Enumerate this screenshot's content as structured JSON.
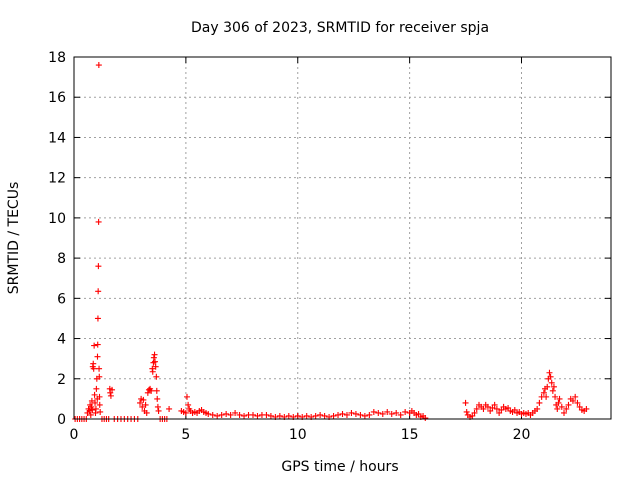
{
  "chart_data": {
    "type": "scatter",
    "title": "Day 306 of 2023, SRMTID for receiver spja",
    "xlabel": "GPS time / hours",
    "ylabel": "SRMTID / TECUs",
    "xlim": [
      0,
      24
    ],
    "ylim": [
      0,
      18
    ],
    "xticks": [
      0,
      5,
      10,
      15,
      20
    ],
    "yticks": [
      0,
      2,
      4,
      6,
      8,
      10,
      12,
      14,
      16,
      18
    ],
    "grid": true,
    "marker": "+",
    "color": "#ff0000",
    "series": [
      {
        "name": "SRMTID",
        "points": [
          [
            0.05,
            0.0
          ],
          [
            0.15,
            0.0
          ],
          [
            0.25,
            0.0
          ],
          [
            0.35,
            0.0
          ],
          [
            0.45,
            0.0
          ],
          [
            0.55,
            0.0
          ],
          [
            0.6,
            0.3
          ],
          [
            0.65,
            0.5
          ],
          [
            0.7,
            0.4
          ],
          [
            0.72,
            0.7
          ],
          [
            0.75,
            0.2
          ],
          [
            0.78,
            0.6
          ],
          [
            0.8,
            0.9
          ],
          [
            0.82,
            0.45
          ],
          [
            0.84,
            2.6
          ],
          [
            0.86,
            2.75
          ],
          [
            0.88,
            2.5
          ],
          [
            0.9,
            3.65
          ],
          [
            0.92,
            1.2
          ],
          [
            0.94,
            0.8
          ],
          [
            0.96,
            0.3
          ],
          [
            0.98,
            0.5
          ],
          [
            1.0,
            1.5
          ],
          [
            1.02,
            2.0
          ],
          [
            1.04,
            1.0
          ],
          [
            1.05,
            3.1
          ],
          [
            1.06,
            3.7
          ],
          [
            1.07,
            5.0
          ],
          [
            1.08,
            6.35
          ],
          [
            1.09,
            7.6
          ],
          [
            1.1,
            9.8
          ],
          [
            1.11,
            17.6
          ],
          [
            1.12,
            2.5
          ],
          [
            1.13,
            2.1
          ],
          [
            1.14,
            1.1
          ],
          [
            1.15,
            0.7
          ],
          [
            1.17,
            0.35
          ],
          [
            1.25,
            0.0
          ],
          [
            1.35,
            0.0
          ],
          [
            1.45,
            0.0
          ],
          [
            1.55,
            0.0
          ],
          [
            1.6,
            1.5
          ],
          [
            1.62,
            1.3
          ],
          [
            1.65,
            1.15
          ],
          [
            1.7,
            1.45
          ],
          [
            1.8,
            0.0
          ],
          [
            1.95,
            0.0
          ],
          [
            2.1,
            0.0
          ],
          [
            2.25,
            0.0
          ],
          [
            2.4,
            0.0
          ],
          [
            2.55,
            0.0
          ],
          [
            2.7,
            0.0
          ],
          [
            2.85,
            0.0
          ],
          [
            2.95,
            0.8
          ],
          [
            3.0,
            1.0
          ],
          [
            3.05,
            0.6
          ],
          [
            3.1,
            0.95
          ],
          [
            3.15,
            0.4
          ],
          [
            3.2,
            0.7
          ],
          [
            3.25,
            0.3
          ],
          [
            3.3,
            1.3
          ],
          [
            3.35,
            1.45
          ],
          [
            3.4,
            1.5
          ],
          [
            3.45,
            1.4
          ],
          [
            3.5,
            2.5
          ],
          [
            3.52,
            2.35
          ],
          [
            3.55,
            2.8
          ],
          [
            3.57,
            3.05
          ],
          [
            3.6,
            3.2
          ],
          [
            3.62,
            2.85
          ],
          [
            3.65,
            2.6
          ],
          [
            3.68,
            2.1
          ],
          [
            3.7,
            1.4
          ],
          [
            3.72,
            1.0
          ],
          [
            3.75,
            0.6
          ],
          [
            3.78,
            0.4
          ],
          [
            3.85,
            0.0
          ],
          [
            3.95,
            0.0
          ],
          [
            4.05,
            0.0
          ],
          [
            4.15,
            0.0
          ],
          [
            4.25,
            0.5
          ],
          [
            4.8,
            0.4
          ],
          [
            4.9,
            0.35
          ],
          [
            5.0,
            0.3
          ],
          [
            5.05,
            1.1
          ],
          [
            5.1,
            0.7
          ],
          [
            5.15,
            0.5
          ],
          [
            5.2,
            0.4
          ],
          [
            5.3,
            0.3
          ],
          [
            5.4,
            0.35
          ],
          [
            5.5,
            0.3
          ],
          [
            5.6,
            0.4
          ],
          [
            5.7,
            0.45
          ],
          [
            5.8,
            0.35
          ],
          [
            5.9,
            0.3
          ],
          [
            6.0,
            0.25
          ],
          [
            6.2,
            0.2
          ],
          [
            6.4,
            0.15
          ],
          [
            6.6,
            0.2
          ],
          [
            6.8,
            0.25
          ],
          [
            7.0,
            0.2
          ],
          [
            7.2,
            0.3
          ],
          [
            7.4,
            0.2
          ],
          [
            7.6,
            0.15
          ],
          [
            7.8,
            0.2
          ],
          [
            8.0,
            0.2
          ],
          [
            8.2,
            0.15
          ],
          [
            8.4,
            0.2
          ],
          [
            8.6,
            0.2
          ],
          [
            8.8,
            0.15
          ],
          [
            9.0,
            0.1
          ],
          [
            9.2,
            0.15
          ],
          [
            9.4,
            0.1
          ],
          [
            9.6,
            0.15
          ],
          [
            9.8,
            0.1
          ],
          [
            10.0,
            0.15
          ],
          [
            10.2,
            0.1
          ],
          [
            10.4,
            0.15
          ],
          [
            10.6,
            0.1
          ],
          [
            10.8,
            0.15
          ],
          [
            11.0,
            0.2
          ],
          [
            11.2,
            0.15
          ],
          [
            11.4,
            0.1
          ],
          [
            11.6,
            0.15
          ],
          [
            11.8,
            0.2
          ],
          [
            12.0,
            0.25
          ],
          [
            12.2,
            0.2
          ],
          [
            12.4,
            0.3
          ],
          [
            12.6,
            0.25
          ],
          [
            12.8,
            0.2
          ],
          [
            13.0,
            0.15
          ],
          [
            13.2,
            0.2
          ],
          [
            13.4,
            0.35
          ],
          [
            13.6,
            0.3
          ],
          [
            13.8,
            0.25
          ],
          [
            14.0,
            0.35
          ],
          [
            14.2,
            0.25
          ],
          [
            14.4,
            0.3
          ],
          [
            14.6,
            0.2
          ],
          [
            14.8,
            0.35
          ],
          [
            15.0,
            0.3
          ],
          [
            15.1,
            0.4
          ],
          [
            15.2,
            0.3
          ],
          [
            15.3,
            0.2
          ],
          [
            15.4,
            0.25
          ],
          [
            15.5,
            0.1
          ],
          [
            15.6,
            0.15
          ],
          [
            15.7,
            0.05
          ],
          [
            17.5,
            0.8
          ],
          [
            17.55,
            0.35
          ],
          [
            17.6,
            0.2
          ],
          [
            17.7,
            0.1
          ],
          [
            17.8,
            0.15
          ],
          [
            17.9,
            0.3
          ],
          [
            18.0,
            0.5
          ],
          [
            18.1,
            0.7
          ],
          [
            18.2,
            0.6
          ],
          [
            18.3,
            0.5
          ],
          [
            18.4,
            0.7
          ],
          [
            18.5,
            0.6
          ],
          [
            18.6,
            0.4
          ],
          [
            18.7,
            0.55
          ],
          [
            18.8,
            0.7
          ],
          [
            18.9,
            0.5
          ],
          [
            19.0,
            0.3
          ],
          [
            19.1,
            0.45
          ],
          [
            19.2,
            0.6
          ],
          [
            19.3,
            0.5
          ],
          [
            19.4,
            0.55
          ],
          [
            19.5,
            0.4
          ],
          [
            19.6,
            0.35
          ],
          [
            19.7,
            0.45
          ],
          [
            19.8,
            0.3
          ],
          [
            19.9,
            0.35
          ],
          [
            20.0,
            0.25
          ],
          [
            20.1,
            0.3
          ],
          [
            20.2,
            0.25
          ],
          [
            20.3,
            0.3
          ],
          [
            20.4,
            0.2
          ],
          [
            20.5,
            0.3
          ],
          [
            20.6,
            0.4
          ],
          [
            20.7,
            0.5
          ],
          [
            20.8,
            0.8
          ],
          [
            20.9,
            1.1
          ],
          [
            21.0,
            1.3
          ],
          [
            21.05,
            1.5
          ],
          [
            21.1,
            1.1
          ],
          [
            21.15,
            1.6
          ],
          [
            21.2,
            2.0
          ],
          [
            21.25,
            2.3
          ],
          [
            21.3,
            2.1
          ],
          [
            21.35,
            1.8
          ],
          [
            21.4,
            1.4
          ],
          [
            21.45,
            1.6
          ],
          [
            21.5,
            1.1
          ],
          [
            21.55,
            0.7
          ],
          [
            21.6,
            0.5
          ],
          [
            21.65,
            0.8
          ],
          [
            21.7,
            1.0
          ],
          [
            21.8,
            0.6
          ],
          [
            21.9,
            0.3
          ],
          [
            22.0,
            0.5
          ],
          [
            22.1,
            0.7
          ],
          [
            22.2,
            1.0
          ],
          [
            22.3,
            0.9
          ],
          [
            22.4,
            1.1
          ],
          [
            22.5,
            0.8
          ],
          [
            22.6,
            0.6
          ],
          [
            22.7,
            0.45
          ],
          [
            22.8,
            0.4
          ],
          [
            22.9,
            0.5
          ]
        ]
      }
    ]
  }
}
